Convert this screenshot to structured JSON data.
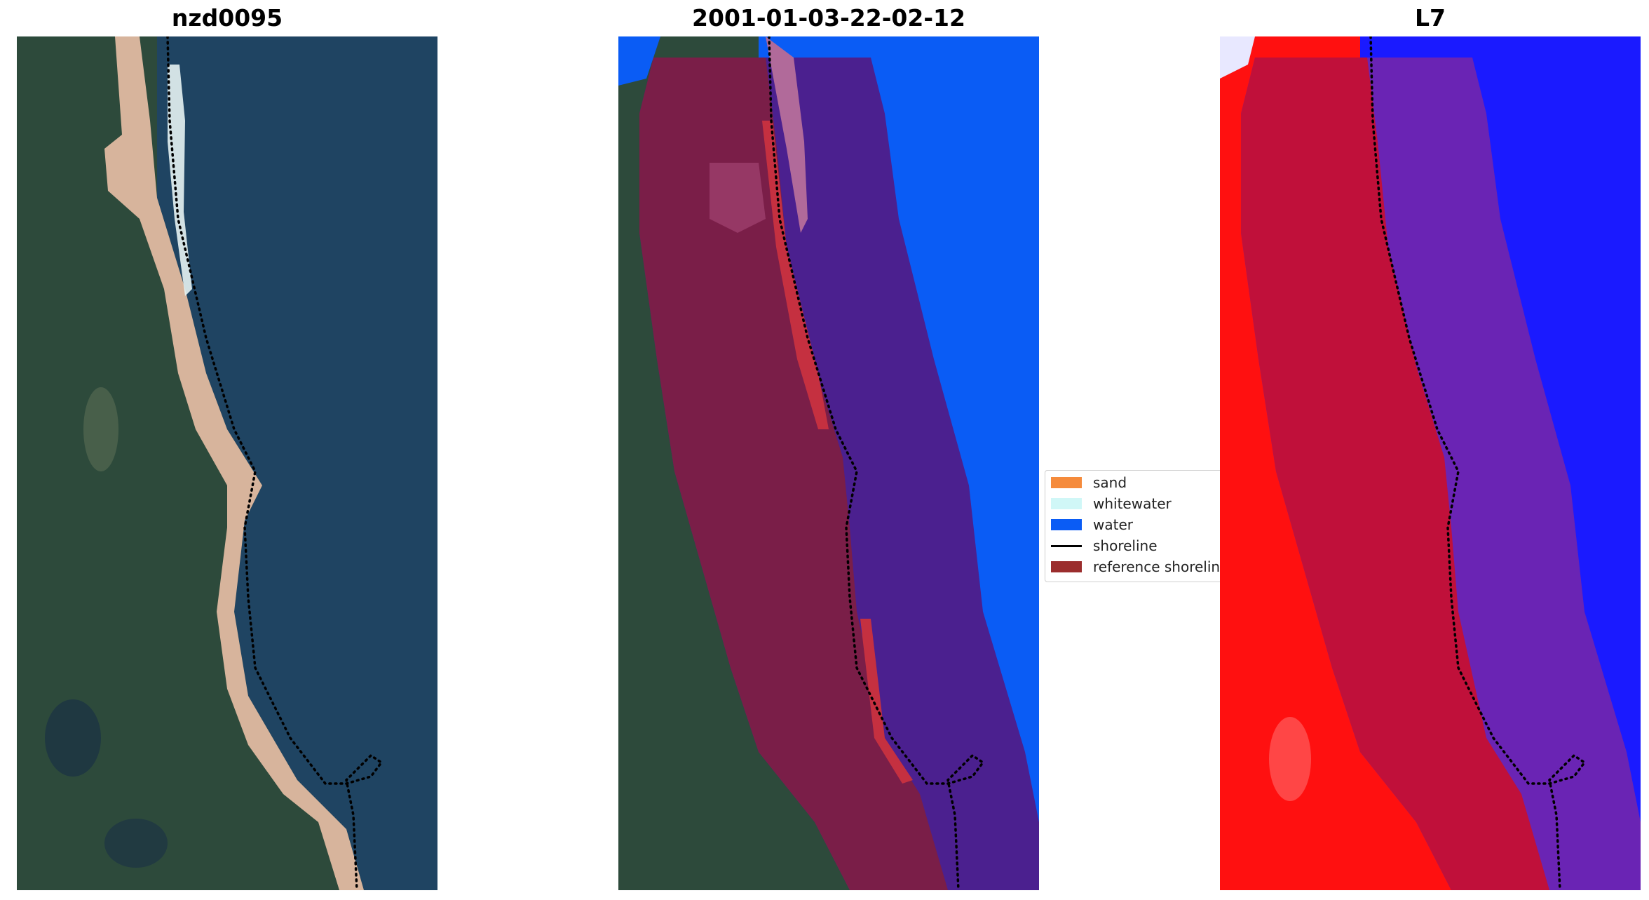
{
  "titles": {
    "left": "nzd0095",
    "middle": "2001-01-03-22-02-12",
    "right": "L7"
  },
  "legend": {
    "items": [
      {
        "label": "sand",
        "color": "#f58b3c",
        "kind": "patch"
      },
      {
        "label": "whitewater",
        "color": "#d0f7f7",
        "kind": "patch"
      },
      {
        "label": "water",
        "color": "#0a5cf5",
        "kind": "patch"
      },
      {
        "label": "shoreline",
        "color": "#000000",
        "kind": "line"
      },
      {
        "label": "reference shoreline",
        "color": "#9b2d2d",
        "kind": "patch"
      }
    ]
  },
  "colors": {
    "land": "#2f4f3f",
    "sea": "#1f4260",
    "beach": "#d9b49b",
    "buffer_land": "#7a1e48",
    "buffer_sea": "#4a1f9a",
    "mndwi_land": "#ff1010",
    "mndwi_water": "#1a1aff",
    "mndwi_buffer": "#c0103a",
    "mndwi_buffer_water": "#6a24b4"
  }
}
